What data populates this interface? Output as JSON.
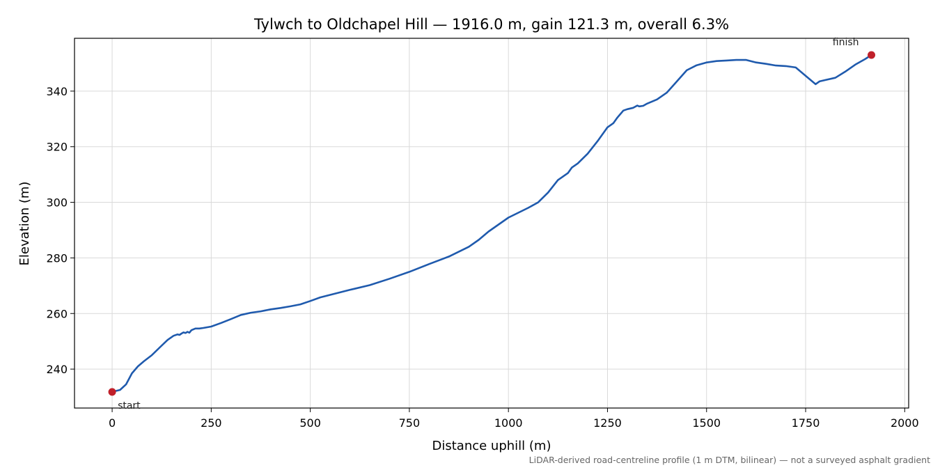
{
  "chart_data": {
    "type": "line",
    "title": "Tylwch to Oldchapel Hill — 1916.0 m, gain 121.3 m, overall 6.3%",
    "xlabel": "Distance uphill (m)",
    "ylabel": "Elevation (m)",
    "note": "LiDAR-derived road-centreline profile (1 m DTM, bilinear) — not a surveyed asphalt gradient",
    "xlim": [
      -95,
      2010
    ],
    "ylim": [
      226,
      359
    ],
    "xticks": [
      0,
      250,
      500,
      750,
      1000,
      1250,
      1500,
      1750,
      2000
    ],
    "yticks": [
      240,
      260,
      280,
      300,
      320,
      340
    ],
    "grid": true,
    "colors": {
      "line": "#1f5aad",
      "marker": "#c0202a"
    },
    "series": [
      {
        "x": [
          0,
          20,
          35,
          50,
          65,
          80,
          100,
          120,
          140,
          155,
          165,
          170,
          175,
          180,
          185,
          190,
          195,
          200,
          210,
          220,
          230,
          250,
          275,
          300,
          325,
          350,
          375,
          400,
          425,
          450,
          475,
          500,
          525,
          550,
          600,
          650,
          700,
          750,
          800,
          850,
          900,
          925,
          950,
          1000,
          1050,
          1075,
          1100,
          1125,
          1140,
          1150,
          1160,
          1175,
          1200,
          1225,
          1250,
          1260,
          1265,
          1275,
          1290,
          1300,
          1315,
          1325,
          1330,
          1340,
          1350,
          1375,
          1400,
          1425,
          1450,
          1475,
          1500,
          1525,
          1550,
          1575,
          1600,
          1625,
          1650,
          1675,
          1700,
          1725,
          1750,
          1775,
          1785,
          1800,
          1825,
          1850,
          1875,
          1900,
          1916
        ],
        "y": [
          231.8,
          232.5,
          234.5,
          238.5,
          241.0,
          242.8,
          245.0,
          247.8,
          250.5,
          252.0,
          252.5,
          252.3,
          252.8,
          253.2,
          253.0,
          253.4,
          253.1,
          254.0,
          254.6,
          254.6,
          254.8,
          255.3,
          256.6,
          258.0,
          259.5,
          260.3,
          260.8,
          261.5,
          262.0,
          262.6,
          263.3,
          264.5,
          265.8,
          266.7,
          268.5,
          270.2,
          272.5,
          275.0,
          277.8,
          280.5,
          284.0,
          286.5,
          289.5,
          294.5,
          298.0,
          300.0,
          303.5,
          308.0,
          309.5,
          310.5,
          312.5,
          314.0,
          317.5,
          322.0,
          327.0,
          328.0,
          328.5,
          330.5,
          333.0,
          333.5,
          334.0,
          334.8,
          334.5,
          334.7,
          335.5,
          337.0,
          339.5,
          343.5,
          347.5,
          349.3,
          350.3,
          350.8,
          351.0,
          351.2,
          351.2,
          350.3,
          349.8,
          349.2,
          349.0,
          348.5,
          345.5,
          342.5,
          343.5,
          344.0,
          344.8,
          347.0,
          349.5,
          351.5,
          353.0
        ]
      }
    ],
    "markers": [
      {
        "label": "start",
        "x": 0,
        "y": 231.8
      },
      {
        "label": "finish",
        "x": 1916,
        "y": 353.0
      }
    ]
  }
}
